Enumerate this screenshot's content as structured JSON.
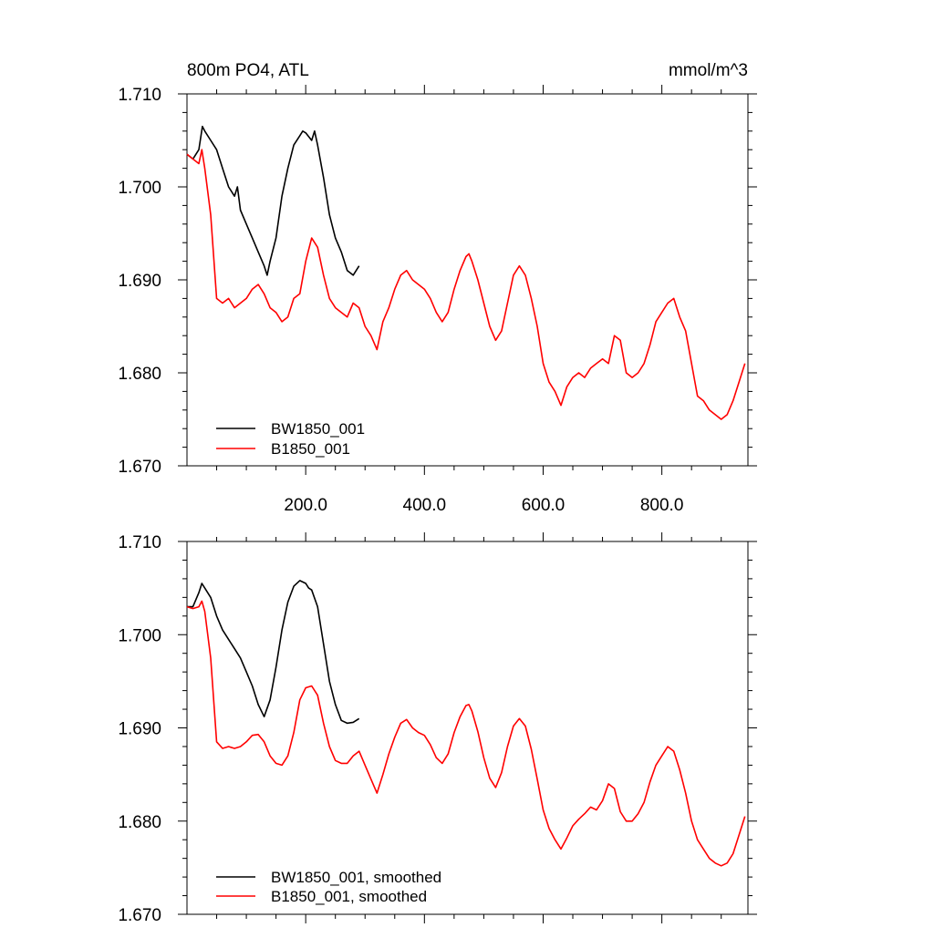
{
  "chart_data": [
    {
      "type": "line",
      "title": "800m PO4, ATL",
      "units": "mmol/m^3",
      "xlim": [
        0,
        945
      ],
      "ylim": [
        1.67,
        1.71
      ],
      "yticks": [
        "1.670",
        "1.680",
        "1.690",
        "1.700",
        "1.710"
      ],
      "xticks": [
        "200.0",
        "400.0",
        "600.0",
        "800.0"
      ],
      "legend_position": "bottom-left",
      "series": [
        {
          "name": "BW1850_001",
          "color": "#000000",
          "x": [
            0,
            10,
            20,
            26,
            30,
            40,
            50,
            60,
            70,
            80,
            85,
            90,
            100,
            110,
            120,
            130,
            135,
            140,
            150,
            160,
            170,
            180,
            190,
            195,
            200,
            210,
            215,
            220,
            230,
            240,
            250,
            260,
            270,
            280,
            290
          ],
          "y": [
            1.7035,
            1.703,
            1.704,
            1.7065,
            1.706,
            1.705,
            1.704,
            1.702,
            1.7,
            1.699,
            1.7,
            1.6975,
            1.696,
            1.6945,
            1.693,
            1.6915,
            1.6905,
            1.692,
            1.6945,
            1.699,
            1.702,
            1.7045,
            1.7055,
            1.706,
            1.7058,
            1.705,
            1.706,
            1.7045,
            1.701,
            1.697,
            1.6945,
            1.693,
            1.691,
            1.6905,
            1.6915
          ]
        },
        {
          "name": "B1850_001",
          "color": "#ff0000",
          "x": [
            0,
            10,
            20,
            25,
            30,
            40,
            50,
            60,
            70,
            80,
            90,
            100,
            110,
            120,
            130,
            140,
            150,
            160,
            170,
            180,
            190,
            200,
            210,
            220,
            230,
            240,
            250,
            260,
            270,
            280,
            290,
            300,
            310,
            320,
            330,
            340,
            350,
            360,
            370,
            380,
            390,
            400,
            410,
            420,
            430,
            440,
            450,
            460,
            470,
            475,
            480,
            490,
            500,
            510,
            520,
            530,
            540,
            550,
            560,
            570,
            580,
            590,
            600,
            610,
            620,
            630,
            640,
            650,
            660,
            670,
            680,
            690,
            700,
            710,
            720,
            730,
            740,
            750,
            760,
            770,
            780,
            790,
            800,
            810,
            820,
            830,
            840,
            850,
            860,
            870,
            880,
            890,
            900,
            910,
            920,
            930,
            940
          ],
          "y": [
            1.7035,
            1.703,
            1.7025,
            1.704,
            1.702,
            1.697,
            1.688,
            1.6875,
            1.688,
            1.687,
            1.6875,
            1.688,
            1.689,
            1.6895,
            1.6885,
            1.687,
            1.6865,
            1.6855,
            1.686,
            1.688,
            1.6885,
            1.692,
            1.6945,
            1.6935,
            1.6905,
            1.688,
            1.687,
            1.6865,
            1.686,
            1.6875,
            1.687,
            1.685,
            1.684,
            1.6825,
            1.6855,
            1.687,
            1.689,
            1.6905,
            1.691,
            1.69,
            1.6895,
            1.689,
            1.688,
            1.6865,
            1.6855,
            1.6865,
            1.689,
            1.691,
            1.6925,
            1.6928,
            1.692,
            1.69,
            1.6875,
            1.685,
            1.6835,
            1.6845,
            1.6875,
            1.6905,
            1.6915,
            1.6905,
            1.688,
            1.685,
            1.681,
            1.679,
            1.678,
            1.6765,
            1.6785,
            1.6795,
            1.68,
            1.6795,
            1.6805,
            1.681,
            1.6815,
            1.681,
            1.684,
            1.6835,
            1.68,
            1.6795,
            1.68,
            1.681,
            1.683,
            1.6855,
            1.6865,
            1.6875,
            1.688,
            1.686,
            1.6845,
            1.681,
            1.6775,
            1.677,
            1.676,
            1.6755,
            1.675,
            1.6755,
            1.677,
            1.679,
            1.681
          ]
        }
      ]
    },
    {
      "type": "line",
      "title": "",
      "units": "",
      "xlim": [
        0,
        945
      ],
      "ylim": [
        1.67,
        1.71
      ],
      "yticks": [
        "1.670",
        "1.680",
        "1.690",
        "1.700",
        "1.710"
      ],
      "xticks": [],
      "legend_position": "bottom-left",
      "series": [
        {
          "name": "BW1850_001, smoothed",
          "color": "#000000",
          "x": [
            0,
            10,
            20,
            25,
            30,
            40,
            50,
            60,
            70,
            80,
            90,
            100,
            110,
            120,
            130,
            140,
            150,
            160,
            170,
            180,
            190,
            200,
            205,
            210,
            220,
            230,
            240,
            250,
            260,
            270,
            280,
            290
          ],
          "y": [
            1.703,
            1.703,
            1.7045,
            1.7055,
            1.705,
            1.704,
            1.702,
            1.7005,
            1.6995,
            1.6985,
            1.6975,
            1.696,
            1.6945,
            1.6925,
            1.6912,
            1.693,
            1.6965,
            1.7005,
            1.7035,
            1.7052,
            1.7058,
            1.7055,
            1.705,
            1.7048,
            1.703,
            1.699,
            1.695,
            1.6925,
            1.6908,
            1.6905,
            1.6906,
            1.691
          ]
        },
        {
          "name": "B1850_001, smoothed",
          "color": "#ff0000",
          "x": [
            0,
            10,
            20,
            25,
            30,
            40,
            50,
            60,
            70,
            80,
            90,
            100,
            110,
            120,
            130,
            140,
            150,
            160,
            170,
            180,
            190,
            200,
            210,
            220,
            230,
            240,
            250,
            260,
            270,
            280,
            290,
            300,
            310,
            320,
            330,
            340,
            350,
            360,
            370,
            380,
            390,
            400,
            410,
            420,
            430,
            440,
            450,
            460,
            470,
            475,
            480,
            490,
            500,
            510,
            520,
            530,
            540,
            550,
            560,
            570,
            580,
            590,
            600,
            610,
            620,
            630,
            640,
            650,
            660,
            670,
            680,
            690,
            700,
            710,
            720,
            730,
            740,
            750,
            760,
            770,
            780,
            790,
            800,
            810,
            820,
            830,
            840,
            850,
            860,
            870,
            880,
            890,
            900,
            910,
            920,
            930,
            940
          ],
          "y": [
            1.703,
            1.7028,
            1.703,
            1.7036,
            1.7025,
            1.6975,
            1.6885,
            1.6878,
            1.688,
            1.6878,
            1.688,
            1.6885,
            1.6892,
            1.6893,
            1.6885,
            1.687,
            1.6862,
            1.686,
            1.687,
            1.6895,
            1.693,
            1.6943,
            1.6945,
            1.6935,
            1.6905,
            1.688,
            1.6865,
            1.6862,
            1.6862,
            1.687,
            1.6875,
            1.686,
            1.6845,
            1.683,
            1.685,
            1.6872,
            1.689,
            1.6905,
            1.6909,
            1.69,
            1.6895,
            1.6892,
            1.6882,
            1.6868,
            1.6862,
            1.6872,
            1.6895,
            1.6912,
            1.6924,
            1.6925,
            1.6918,
            1.6896,
            1.6868,
            1.6846,
            1.6836,
            1.6852,
            1.688,
            1.6902,
            1.691,
            1.6902,
            1.6877,
            1.6845,
            1.6812,
            1.6792,
            1.678,
            1.677,
            1.6782,
            1.6795,
            1.6802,
            1.6808,
            1.6815,
            1.6812,
            1.6822,
            1.684,
            1.6835,
            1.681,
            1.68,
            1.68,
            1.6808,
            1.682,
            1.6842,
            1.686,
            1.687,
            1.688,
            1.6875,
            1.6855,
            1.683,
            1.68,
            1.678,
            1.677,
            1.676,
            1.6755,
            1.6752,
            1.6755,
            1.6765,
            1.6785,
            1.6805
          ]
        }
      ]
    }
  ]
}
